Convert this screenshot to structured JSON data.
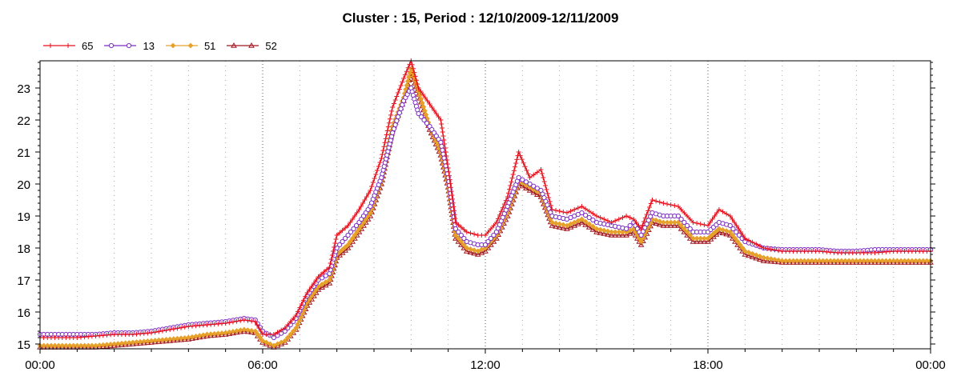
{
  "chart_data": {
    "type": "line",
    "title": "Cluster : 15, Period : 12/10/2009-12/11/2009",
    "xlabel": "",
    "ylabel": "",
    "xlim": [
      0,
      24
    ],
    "ylim": [
      14.85,
      23.85
    ],
    "x_ticks": [
      {
        "value": 0,
        "label": "00:00"
      },
      {
        "value": 6,
        "label": "06:00"
      },
      {
        "value": 12,
        "label": "12:00"
      },
      {
        "value": 18,
        "label": "18:00"
      },
      {
        "value": 24,
        "label": "00:00"
      }
    ],
    "y_ticks": [
      15,
      16,
      17,
      18,
      19,
      20,
      21,
      22,
      23
    ],
    "grid": "vertical dotted",
    "legend_position": "top-left",
    "x": [
      0,
      0.5,
      1,
      1.5,
      2,
      2.5,
      3,
      3.5,
      4,
      4.5,
      5,
      5.5,
      5.8,
      6,
      6.3,
      6.6,
      6.9,
      7.2,
      7.5,
      7.8,
      8,
      8.3,
      8.6,
      8.9,
      9.2,
      9.5,
      9.8,
      10,
      10.2,
      10.5,
      10.8,
      11,
      11.2,
      11.5,
      11.8,
      12,
      12.3,
      12.6,
      12.9,
      13.2,
      13.5,
      13.8,
      14.2,
      14.6,
      15,
      15.4,
      15.8,
      16,
      16.2,
      16.5,
      16.8,
      17.2,
      17.6,
      18,
      18.3,
      18.6,
      19,
      19.5,
      20,
      20.5,
      21,
      21.5,
      22,
      22.5,
      23,
      23.5,
      24
    ],
    "series": [
      {
        "name": "65",
        "color": "#e8101c",
        "marker": "plus",
        "values": [
          15.2,
          15.2,
          15.2,
          15.25,
          15.3,
          15.3,
          15.35,
          15.45,
          15.55,
          15.6,
          15.65,
          15.75,
          15.7,
          15.3,
          15.3,
          15.5,
          15.9,
          16.6,
          17.1,
          17.4,
          18.4,
          18.7,
          19.2,
          19.8,
          20.8,
          22.4,
          23.3,
          23.85,
          23.0,
          22.5,
          22.0,
          20.5,
          18.8,
          18.5,
          18.4,
          18.4,
          18.8,
          19.6,
          21.0,
          20.2,
          20.45,
          19.2,
          19.1,
          19.3,
          19.0,
          18.8,
          19.0,
          18.9,
          18.6,
          19.5,
          19.4,
          19.3,
          18.8,
          18.7,
          19.2,
          19.0,
          18.3,
          18.0,
          17.9,
          17.9,
          17.9,
          17.85,
          17.85,
          17.85,
          17.9,
          17.9,
          17.9
        ]
      },
      {
        "name": "13",
        "color": "#7b2fc4",
        "marker": "circle",
        "values": [
          15.3,
          15.3,
          15.3,
          15.3,
          15.35,
          15.35,
          15.4,
          15.5,
          15.6,
          15.65,
          15.7,
          15.8,
          15.75,
          15.4,
          15.2,
          15.4,
          15.8,
          16.5,
          17.0,
          17.2,
          18.0,
          18.4,
          18.8,
          19.3,
          20.2,
          21.6,
          22.6,
          23.0,
          22.2,
          21.8,
          21.3,
          20.2,
          18.6,
          18.2,
          18.1,
          18.1,
          18.5,
          19.3,
          20.2,
          20.0,
          19.8,
          19.0,
          18.9,
          19.1,
          18.8,
          18.7,
          18.6,
          18.8,
          18.4,
          19.1,
          19.0,
          19.0,
          18.5,
          18.5,
          18.8,
          18.7,
          18.2,
          18.0,
          17.95,
          17.95,
          17.95,
          17.9,
          17.9,
          17.95,
          17.95,
          17.95,
          17.95
        ]
      },
      {
        "name": "51",
        "color": "#e6a12a",
        "marker": "diamond",
        "values": [
          14.95,
          14.95,
          14.95,
          14.95,
          15.0,
          15.05,
          15.1,
          15.15,
          15.2,
          15.3,
          15.35,
          15.45,
          15.4,
          15.1,
          14.95,
          15.1,
          15.5,
          16.3,
          16.8,
          17.0,
          17.8,
          18.1,
          18.6,
          19.1,
          20.1,
          21.8,
          22.7,
          23.6,
          22.9,
          21.8,
          21.0,
          20.0,
          18.4,
          18.0,
          17.9,
          18.0,
          18.4,
          19.1,
          20.1,
          19.9,
          19.7,
          18.8,
          18.7,
          18.9,
          18.6,
          18.5,
          18.5,
          18.6,
          18.2,
          18.9,
          18.8,
          18.8,
          18.3,
          18.3,
          18.6,
          18.5,
          17.9,
          17.7,
          17.6,
          17.6,
          17.6,
          17.6,
          17.6,
          17.6,
          17.6,
          17.6,
          17.6
        ]
      },
      {
        "name": "52",
        "color": "#a01820",
        "marker": "triangle",
        "values": [
          14.9,
          14.9,
          14.9,
          14.9,
          14.95,
          15.0,
          15.05,
          15.1,
          15.15,
          15.25,
          15.3,
          15.4,
          15.35,
          15.05,
          14.9,
          15.05,
          15.45,
          16.2,
          16.7,
          16.9,
          17.7,
          18.0,
          18.5,
          19.0,
          20.0,
          21.7,
          22.6,
          23.5,
          22.8,
          21.7,
          20.9,
          19.9,
          18.3,
          17.9,
          17.8,
          17.9,
          18.3,
          19.0,
          20.0,
          19.8,
          19.6,
          18.7,
          18.6,
          18.8,
          18.5,
          18.4,
          18.4,
          18.5,
          18.1,
          18.8,
          18.7,
          18.7,
          18.2,
          18.2,
          18.5,
          18.4,
          17.8,
          17.6,
          17.55,
          17.55,
          17.55,
          17.55,
          17.55,
          17.55,
          17.55,
          17.55,
          17.55
        ]
      }
    ]
  }
}
